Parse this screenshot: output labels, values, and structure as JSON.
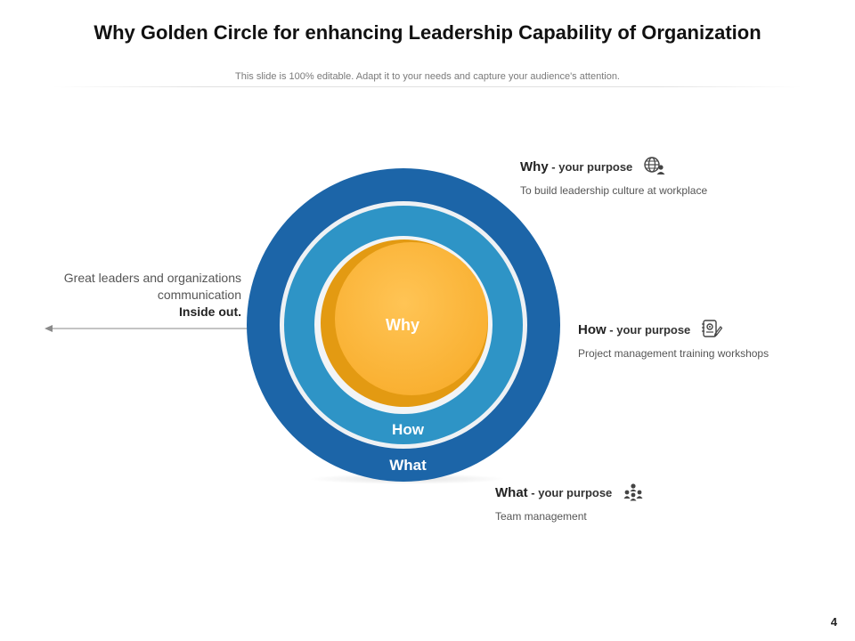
{
  "slide": {
    "title": "Why Golden Circle for enhancing Leadership Capability of Organization",
    "subtitle": "This slide is 100% editable. Adapt it to your needs and capture your audience's attention.",
    "page_number": "4"
  },
  "circle": {
    "inner_label": "Why",
    "middle_label": "How",
    "outer_label": "What",
    "colors": {
      "outer": "#1c65a8",
      "middle": "#2e94c6",
      "inner": "#fbb33a",
      "inner_shadow": "#e39a12"
    }
  },
  "left_note": {
    "line1": "Great leaders and organizations",
    "line2": "communication",
    "line3": "Inside out."
  },
  "callouts": {
    "why": {
      "key": "Why",
      "sub": " - your purpose",
      "desc": "To build leadership culture at workplace",
      "icon": "globe-user-icon"
    },
    "how": {
      "key": "How",
      "sub": " - your purpose",
      "desc": "Project management training workshops",
      "icon": "settings-document-icon"
    },
    "what": {
      "key": "What",
      "sub": " - your purpose",
      "desc": "Team management",
      "icon": "team-icon"
    }
  }
}
